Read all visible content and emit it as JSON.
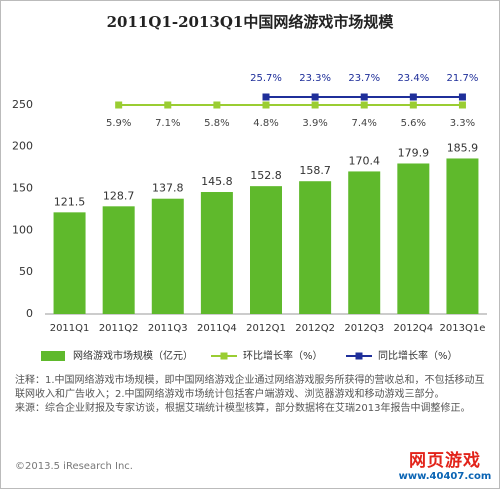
{
  "chart_data": {
    "type": "bar",
    "title": "2011Q1-2013Q1中国网络游戏市场规模",
    "categories": [
      "2011Q1",
      "2011Q2",
      "2011Q3",
      "2011Q4",
      "2012Q1",
      "2012Q2",
      "2012Q3",
      "2012Q4",
      "2013Q1e"
    ],
    "series": [
      {
        "name": "网络游戏市场规模（亿元）",
        "type": "bar",
        "color": "#5fb92c",
        "values": [
          121.5,
          128.7,
          137.8,
          145.8,
          152.8,
          158.7,
          170.4,
          179.9,
          185.9
        ]
      },
      {
        "name": "环比增长率（%）",
        "type": "line",
        "color": "#9acd32",
        "values": [
          null,
          5.9,
          7.1,
          5.8,
          4.8,
          3.9,
          7.4,
          5.6,
          3.3
        ],
        "value_labels": [
          null,
          "5.9%",
          "7.1%",
          "5.8%",
          "4.8%",
          "3.9%",
          "7.4%",
          "5.6%",
          "3.3%"
        ]
      },
      {
        "name": "同比增长率（%）",
        "type": "line",
        "color": "#1f2f9a",
        "values": [
          null,
          null,
          null,
          null,
          25.7,
          23.3,
          23.7,
          23.4,
          21.7
        ],
        "value_labels": [
          null,
          null,
          null,
          null,
          "25.7%",
          "23.3%",
          "23.7%",
          "23.4%",
          "21.7%"
        ]
      }
    ],
    "ylim": [
      0,
      300
    ],
    "yticks": [
      0,
      50,
      100,
      150,
      200,
      250
    ],
    "grid": false
  },
  "notes": [
    "注释：1.中国网络游戏市场规模，即中国网络游戏企业通过网络游戏服务所获得的营收总和，不包括移动互联网收入和广告收入；2.中国网络游戏市场统计包括客户端游戏、浏览器游戏和移动游戏三部分。",
    "来源：综合企业财报及专家访谈，根据艾瑞统计模型核算，部分数据将在艾瑞2013年报告中调整修正。"
  ],
  "footer": "©2013.5 iResearch Inc.",
  "logo": [
    "网页游戏",
    "www.40407.com"
  ]
}
